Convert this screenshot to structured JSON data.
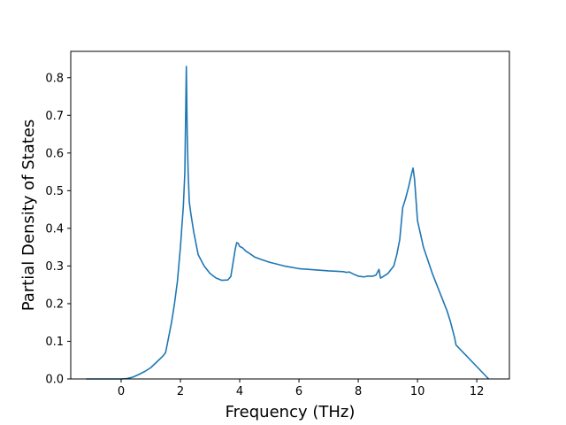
{
  "chart_data": {
    "type": "line",
    "title": "",
    "xlabel": "Frequency (THz)",
    "ylabel": "Partial Density of States",
    "xlim": [
      -1.7,
      13.1
    ],
    "ylim": [
      0.0,
      0.87
    ],
    "xticks": [
      0,
      2,
      4,
      6,
      8,
      10,
      12
    ],
    "xtick_labels": [
      "0",
      "2",
      "4",
      "6",
      "8",
      "10",
      "12"
    ],
    "yticks": [
      0.0,
      0.1,
      0.2,
      0.3,
      0.4,
      0.5,
      0.6,
      0.7,
      0.8
    ],
    "ytick_labels": [
      "0.0",
      "0.1",
      "0.2",
      "0.3",
      "0.4",
      "0.5",
      "0.6",
      "0.7",
      "0.8"
    ],
    "grid": false,
    "series": [
      {
        "color": "#1f77b4",
        "x": [
          -1.18,
          -0.5,
          0.0,
          0.2,
          0.4,
          0.6,
          0.8,
          1.0,
          1.2,
          1.4,
          1.5,
          1.6,
          1.7,
          1.8,
          1.9,
          2.0,
          2.1,
          2.15,
          2.2,
          2.23,
          2.26,
          2.3,
          2.35,
          2.45,
          2.6,
          2.8,
          3.0,
          3.2,
          3.4,
          3.6,
          3.7,
          3.8,
          3.85,
          3.9,
          3.95,
          4.0,
          4.1,
          4.2,
          4.3,
          4.5,
          4.7,
          5.0,
          5.5,
          6.0,
          6.5,
          7.0,
          7.5,
          7.6,
          7.7,
          7.8,
          8.0,
          8.2,
          8.3,
          8.5,
          8.6,
          8.7,
          8.75,
          8.8,
          9.0,
          9.2,
          9.3,
          9.4,
          9.5,
          9.6,
          9.7,
          9.8,
          9.85,
          9.9,
          10.0,
          10.2,
          10.5,
          10.8,
          11.0,
          11.1,
          11.15,
          11.2,
          11.25,
          11.3,
          12.4
        ],
        "y": [
          0.0,
          0.0,
          0.0,
          0.001,
          0.005,
          0.012,
          0.02,
          0.03,
          0.045,
          0.06,
          0.07,
          0.11,
          0.15,
          0.2,
          0.26,
          0.35,
          0.46,
          0.55,
          0.83,
          0.65,
          0.55,
          0.47,
          0.44,
          0.39,
          0.33,
          0.3,
          0.28,
          0.268,
          0.262,
          0.263,
          0.272,
          0.32,
          0.345,
          0.362,
          0.36,
          0.352,
          0.348,
          0.34,
          0.335,
          0.324,
          0.318,
          0.31,
          0.3,
          0.293,
          0.29,
          0.287,
          0.285,
          0.283,
          0.284,
          0.28,
          0.273,
          0.271,
          0.273,
          0.273,
          0.276,
          0.291,
          0.268,
          0.27,
          0.28,
          0.3,
          0.33,
          0.37,
          0.455,
          0.48,
          0.51,
          0.545,
          0.56,
          0.53,
          0.42,
          0.35,
          0.28,
          0.22,
          0.18,
          0.155,
          0.14,
          0.125,
          0.11,
          0.09,
          0.0
        ]
      }
    ]
  }
}
